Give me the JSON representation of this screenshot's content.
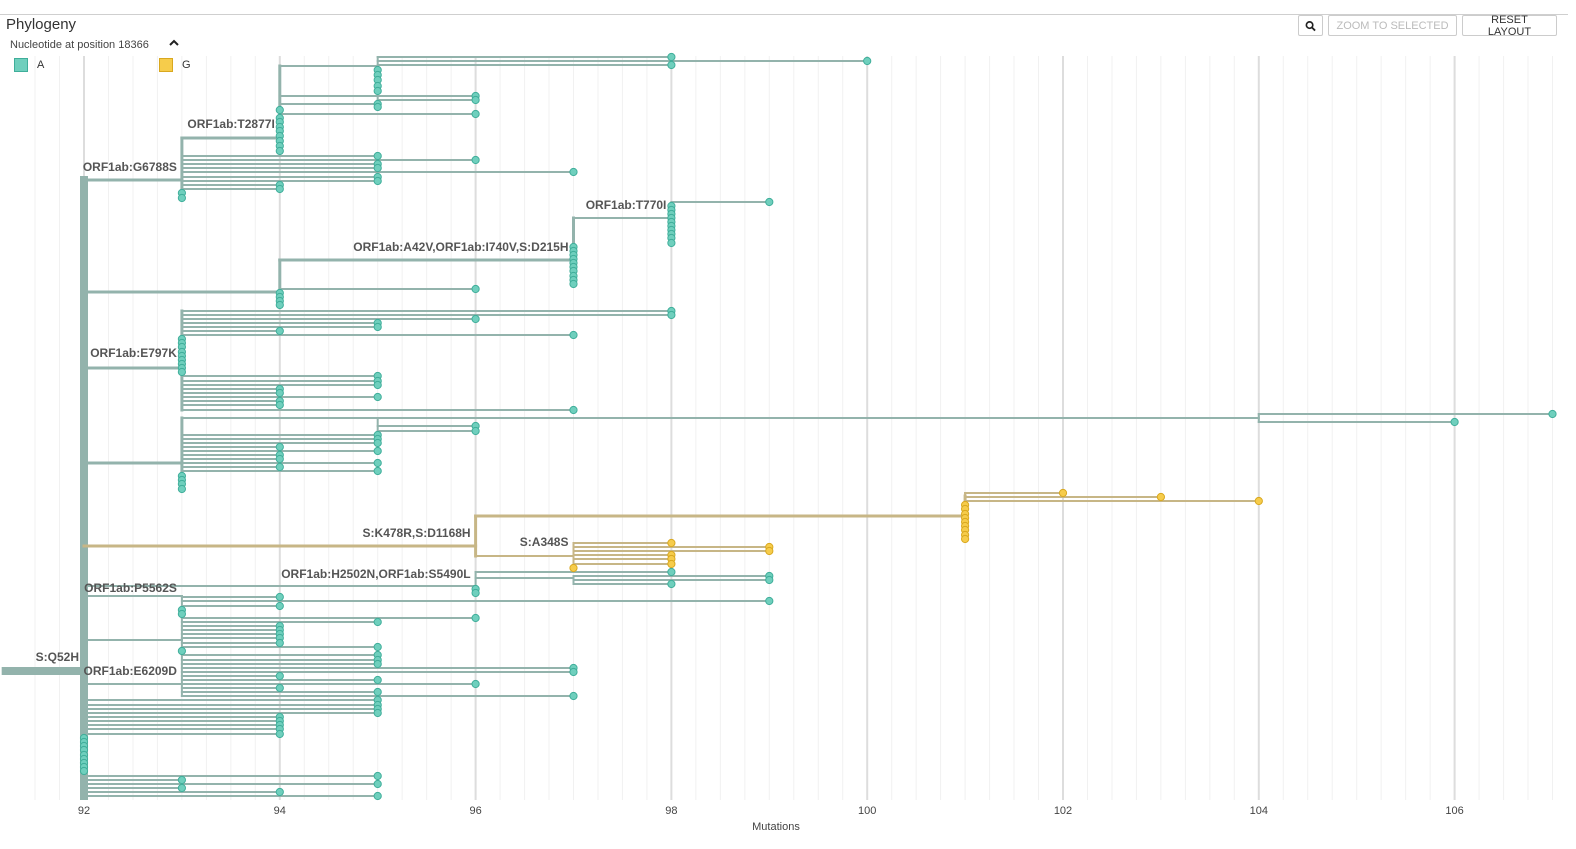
{
  "panel": {
    "title": "Phylogeny",
    "color_by_label": "Nucleotide at position 18366",
    "toggle_icon": "chevron-up-icon"
  },
  "legend": [
    {
      "label": "A",
      "color": "#6fcfbd",
      "border": "#3fae9a"
    },
    {
      "label": "G",
      "color": "#f6cc4b",
      "border": "#d9a81f"
    }
  ],
  "buttons": {
    "zoom_icon": "magnifier-icon",
    "zoom_to_selected": "ZOOM TO SELECTED",
    "reset_layout": "RESET LAYOUT"
  },
  "colors": {
    "branch_a": "#93b3ac",
    "branch_g": "#c7b686",
    "tip_a": "#6fcfbd",
    "tip_a_stroke": "#3fae9a",
    "tip_g": "#f6cc4b",
    "tip_g_stroke": "#d9a81f",
    "grid_major": "#dddddd",
    "grid_minor": "#f1f1f1"
  },
  "axis": {
    "title": "Mutations",
    "range": [
      91.5,
      107.1
    ],
    "ticks": [
      92,
      94,
      96,
      98,
      100,
      102,
      104,
      106
    ],
    "tick_labels": [
      "92",
      "94",
      "96",
      "98",
      "100",
      "102",
      "104",
      "106"
    ]
  },
  "branch_labels": [
    {
      "text": "S:Q52H",
      "x": 92
    },
    {
      "text": "ORF1ab:G6788S",
      "x": 93
    },
    {
      "text": "ORF1ab:T2877I",
      "x": 94
    },
    {
      "text": "ORF1ab:T770I",
      "x": 98
    },
    {
      "text": "ORF1ab:A42V,ORF1ab:I740V,S:D215H",
      "x": 97
    },
    {
      "text": "ORF1ab:E797K",
      "x": 93
    },
    {
      "text": "S:K478R,S:D1168H",
      "x": 96
    },
    {
      "text": "S:A348S",
      "x": 97
    },
    {
      "text": "ORF1ab:H2502N,ORF1ab:S5490L",
      "x": 96
    },
    {
      "text": "ORF1ab:P5562S",
      "x": 93
    },
    {
      "text": "ORF1ab:E6209D",
      "x": 93
    }
  ]
}
